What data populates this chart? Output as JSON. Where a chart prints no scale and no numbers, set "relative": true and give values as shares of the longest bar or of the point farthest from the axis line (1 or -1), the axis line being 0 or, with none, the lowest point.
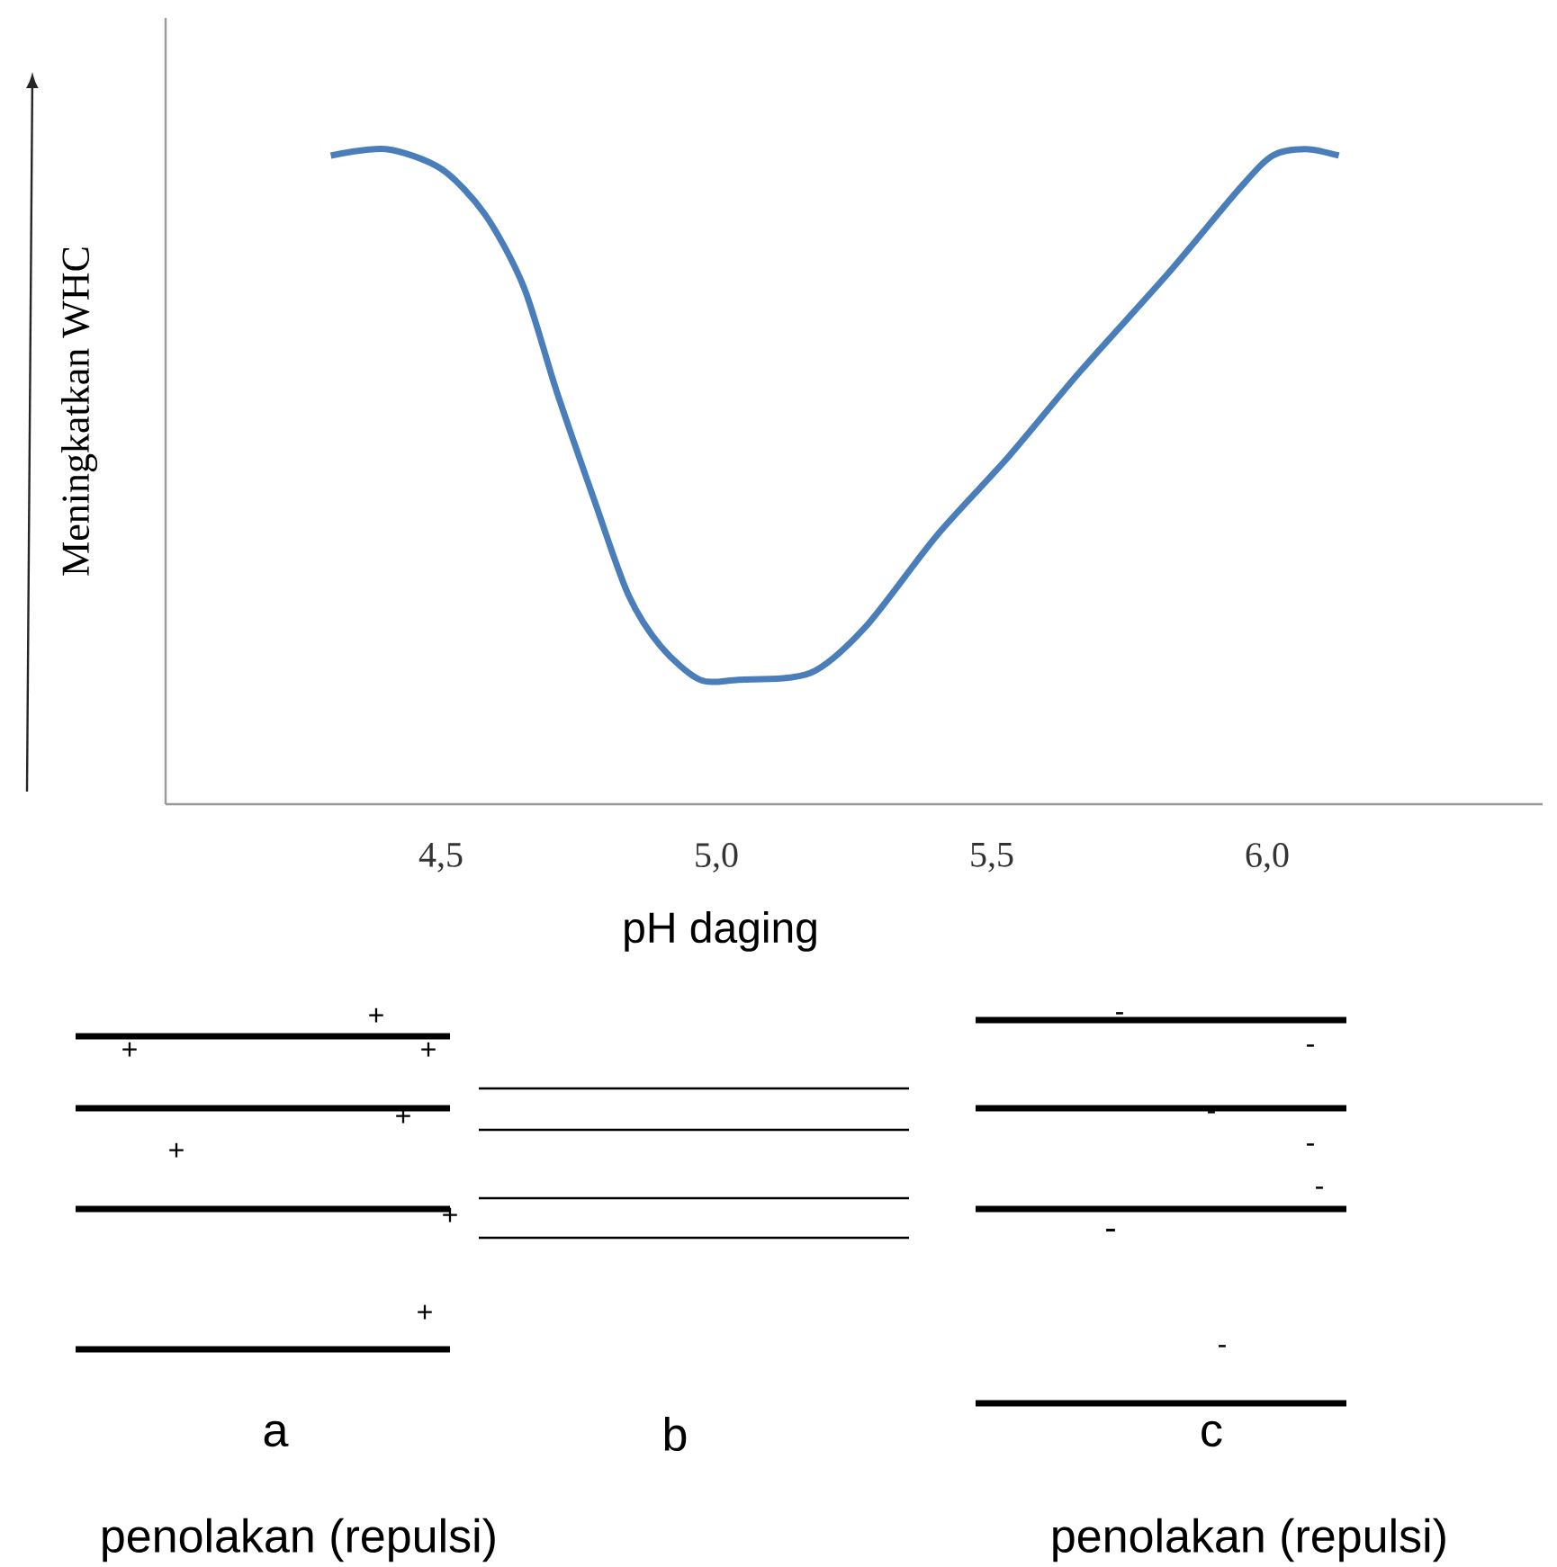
{
  "chart_data": {
    "type": "line",
    "relative": true,
    "xlabel": "pH daging",
    "ylabel": "Meningkatkan WHC",
    "color": "#4a7ebb",
    "x": [
      4.3,
      4.4,
      4.5,
      4.58,
      4.65,
      4.71,
      4.78,
      4.84,
      4.9,
      4.97,
      5.04,
      5.17,
      5.27,
      5.4,
      5.53,
      5.66,
      5.82,
      5.95,
      6.01,
      6.07,
      6.13
    ],
    "values": [
      0.99,
      1.0,
      0.97,
      0.9,
      0.79,
      0.63,
      0.46,
      0.32,
      0.24,
      0.19,
      0.19,
      0.2,
      0.27,
      0.41,
      0.53,
      0.66,
      0.81,
      0.94,
      0.99,
      1.0,
      0.99
    ],
    "xlim": [
      4.0,
      6.5
    ],
    "xticks": [
      {
        "value": 4.5,
        "label": "4,5"
      },
      {
        "value": 5.0,
        "label": "5,0"
      },
      {
        "value": 5.5,
        "label": "5,5"
      },
      {
        "value": 6.0,
        "label": "6,0"
      }
    ],
    "annotations": [
      "a",
      "b",
      "c",
      "penolakan (repulsi)",
      "penolakan (repulsi)",
      "+",
      "+",
      "+",
      "+",
      "+",
      "+",
      "+",
      "-",
      "-",
      "-",
      "-",
      "-",
      "-",
      "-"
    ]
  }
}
